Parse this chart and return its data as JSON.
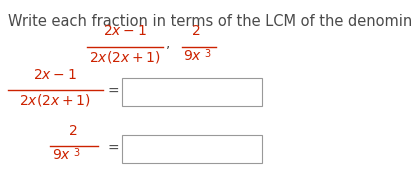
{
  "background_color": "#ffffff",
  "instruction_text": "Write each fraction in terms of the LCM of the denominators.",
  "instruction_color": "#4a4a4a",
  "fraction_color": "#cc2200",
  "text_color": "#4a4a4a",
  "box_edgecolor": "#999999",
  "fs_instr": 10.5,
  "fs_math": 10,
  "fs_super": 7
}
